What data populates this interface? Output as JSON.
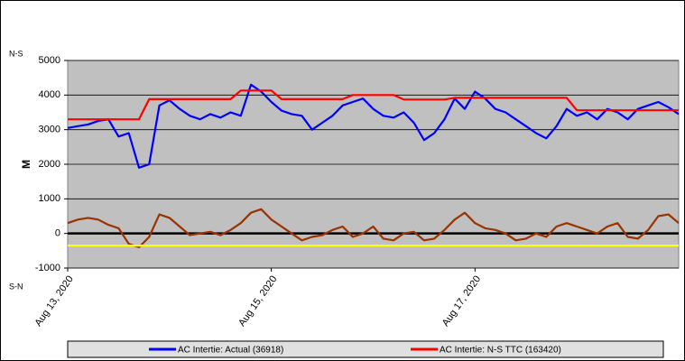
{
  "chart_data": {
    "type": "line",
    "y_label_top": "N-S",
    "y_label_bottom": "S-N",
    "ylabel": "M",
    "xlim": [
      0,
      6
    ],
    "xticks": [
      {
        "value": 0,
        "label": "Aug 13, 2020"
      },
      {
        "value": 2,
        "label": "Aug 15, 2020"
      },
      {
        "value": 4,
        "label": "Aug 17, 2020"
      }
    ],
    "ylim": [
      -1000,
      5000
    ],
    "yticks": [
      -1000,
      0,
      1000,
      2000,
      3000,
      4000,
      5000
    ],
    "grid": true,
    "plot_background": "#c0c0c0",
    "x": [
      0,
      0.1,
      0.2,
      0.3,
      0.4,
      0.5,
      0.6,
      0.7,
      0.8,
      0.9,
      1,
      1.1,
      1.2,
      1.3,
      1.4,
      1.5,
      1.6,
      1.7,
      1.8,
      1.9,
      2,
      2.1,
      2.2,
      2.3,
      2.4,
      2.5,
      2.6,
      2.7,
      2.8,
      2.9,
      3,
      3.1,
      3.2,
      3.3,
      3.4,
      3.5,
      3.6,
      3.7,
      3.8,
      3.9,
      4,
      4.1,
      4.2,
      4.3,
      4.4,
      4.5,
      4.6,
      4.7,
      4.8,
      4.9,
      5,
      5.1,
      5.2,
      5.3,
      5.4,
      5.5,
      5.6,
      5.7,
      5.8,
      5.9,
      6
    ],
    "series": [
      {
        "name": "AC Intertie: Actual (36918)",
        "color": "#0000ff",
        "legend": true,
        "values": [
          3050,
          3100,
          3150,
          3250,
          3300,
          2800,
          2900,
          1900,
          2000,
          3700,
          3850,
          3600,
          3400,
          3300,
          3450,
          3350,
          3500,
          3400,
          4300,
          4100,
          3800,
          3550,
          3450,
          3400,
          3000,
          3200,
          3400,
          3700,
          3800,
          3900,
          3600,
          3400,
          3350,
          3500,
          3200,
          2700,
          2900,
          3300,
          3900,
          3600,
          4100,
          3900,
          3600,
          3500,
          3300,
          3100,
          2900,
          2750,
          3100,
          3600,
          3400,
          3500,
          3300,
          3600,
          3500,
          3300,
          3600,
          3700,
          3800,
          3650,
          3450
        ]
      },
      {
        "name": "AC Intertie: N-S TTC (163420)",
        "color": "#ff0000",
        "legend": true,
        "values": [
          3300,
          3300,
          3300,
          3300,
          3300,
          3300,
          3300,
          3300,
          3880,
          3880,
          3880,
          3880,
          3880,
          3880,
          3880,
          3880,
          3880,
          4130,
          4130,
          4130,
          4130,
          3880,
          3880,
          3880,
          3880,
          3880,
          3880,
          3880,
          4000,
          4000,
          4000,
          4000,
          4000,
          3870,
          3870,
          3870,
          3870,
          3870,
          3920,
          3920,
          3920,
          3920,
          3920,
          3920,
          3920,
          3920,
          3920,
          3920,
          3920,
          3920,
          3560,
          3560,
          3560,
          3560,
          3560,
          3560,
          3560,
          3560,
          3560,
          3560,
          3560
        ]
      },
      {
        "color": "#993300",
        "values": [
          300,
          400,
          450,
          400,
          250,
          150,
          -300,
          -400,
          -100,
          550,
          450,
          200,
          -50,
          0,
          50,
          -50,
          100,
          300,
          600,
          700,
          400,
          200,
          0,
          -200,
          -100,
          -50,
          100,
          200,
          -100,
          0,
          200,
          -150,
          -200,
          0,
          50,
          -200,
          -150,
          100,
          400,
          600,
          300,
          150,
          100,
          0,
          -200,
          -150,
          0,
          -100,
          200,
          300,
          200,
          100,
          0,
          200,
          300,
          -100,
          -150,
          100,
          500,
          550,
          300
        ]
      },
      {
        "color": "#ffff00",
        "x": [
          0,
          6
        ],
        "values": [
          -350,
          -350
        ]
      }
    ]
  }
}
